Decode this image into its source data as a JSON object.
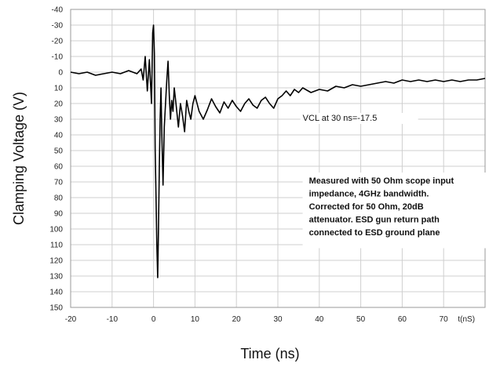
{
  "chart_data": {
    "type": "line",
    "title": "",
    "xlabel": "Time (ns)",
    "ylabel": "Clamping Voltage (V)",
    "x_unit_label": "t(nS)",
    "xlim": [
      -20,
      80
    ],
    "ylim": [
      -40,
      150
    ],
    "y_inverted": true,
    "grid": true,
    "x_ticks": [
      -20,
      -10,
      0,
      10,
      20,
      30,
      40,
      50,
      60,
      70
    ],
    "y_ticks": [
      -40,
      -30,
      -20,
      -10,
      0,
      10,
      20,
      30,
      40,
      50,
      60,
      70,
      80,
      90,
      100,
      110,
      120,
      130,
      140,
      150
    ],
    "series": [
      {
        "color": "#000000",
        "x": [
          -20,
          -18,
          -16,
          -14,
          -12,
          -10,
          -8,
          -6,
          -4,
          -3,
          -2.5,
          -2,
          -1.5,
          -1,
          -0.5,
          -0.2,
          0,
          0.2,
          0.4,
          0.6,
          0.8,
          1.0,
          1.2,
          1.4,
          1.6,
          1.8,
          2.0,
          2.3,
          2.6,
          2.9,
          3.2,
          3.5,
          3.8,
          4.1,
          4.4,
          4.7,
          5.0,
          5.5,
          6.0,
          6.5,
          7.0,
          7.5,
          8.0,
          8.5,
          9.0,
          9.5,
          10,
          11,
          12,
          13,
          14,
          15,
          16,
          17,
          18,
          19,
          20,
          21,
          22,
          23,
          24,
          25,
          26,
          27,
          28,
          29,
          30,
          31,
          32,
          33,
          34,
          35,
          36,
          38,
          40,
          42,
          44,
          46,
          48,
          50,
          52,
          54,
          56,
          58,
          60,
          62,
          64,
          66,
          68,
          70,
          72,
          74,
          76,
          78,
          80
        ],
        "y": [
          0,
          1,
          0,
          2,
          1,
          0,
          1,
          -1,
          1,
          -2,
          5,
          -10,
          12,
          -8,
          20,
          -25,
          -30,
          -12,
          50,
          80,
          110,
          131,
          100,
          60,
          30,
          10,
          40,
          72,
          35,
          20,
          5,
          -7,
          15,
          30,
          18,
          25,
          10,
          22,
          35,
          20,
          28,
          38,
          18,
          25,
          30,
          20,
          15,
          25,
          30,
          24,
          17,
          22,
          26,
          19,
          23,
          18,
          22,
          25,
          20,
          17,
          21,
          23,
          18,
          16,
          20,
          23,
          17,
          15,
          12,
          15,
          11,
          13,
          10,
          13,
          11,
          12,
          9,
          10,
          8,
          9,
          8,
          7,
          6,
          7,
          5,
          6,
          5,
          6,
          5,
          6,
          5,
          6,
          5,
          5,
          4
        ]
      }
    ],
    "annotations": [
      {
        "text": "VCL at 30 ns=-17.5",
        "x": 36,
        "y": 31
      }
    ],
    "note_box": {
      "lines": [
        "Measured with 50 Ohm scope input",
        "impedance, 4GHz bandwidth.",
        "Corrected for 50 Ohm, 20dB",
        "attenuator. ESD gun return path",
        "connected to ESD ground plane"
      ]
    },
    "colors": {
      "grid": "#cfcfcf",
      "frame": "#9a9a9a",
      "trace": "#000000"
    }
  }
}
